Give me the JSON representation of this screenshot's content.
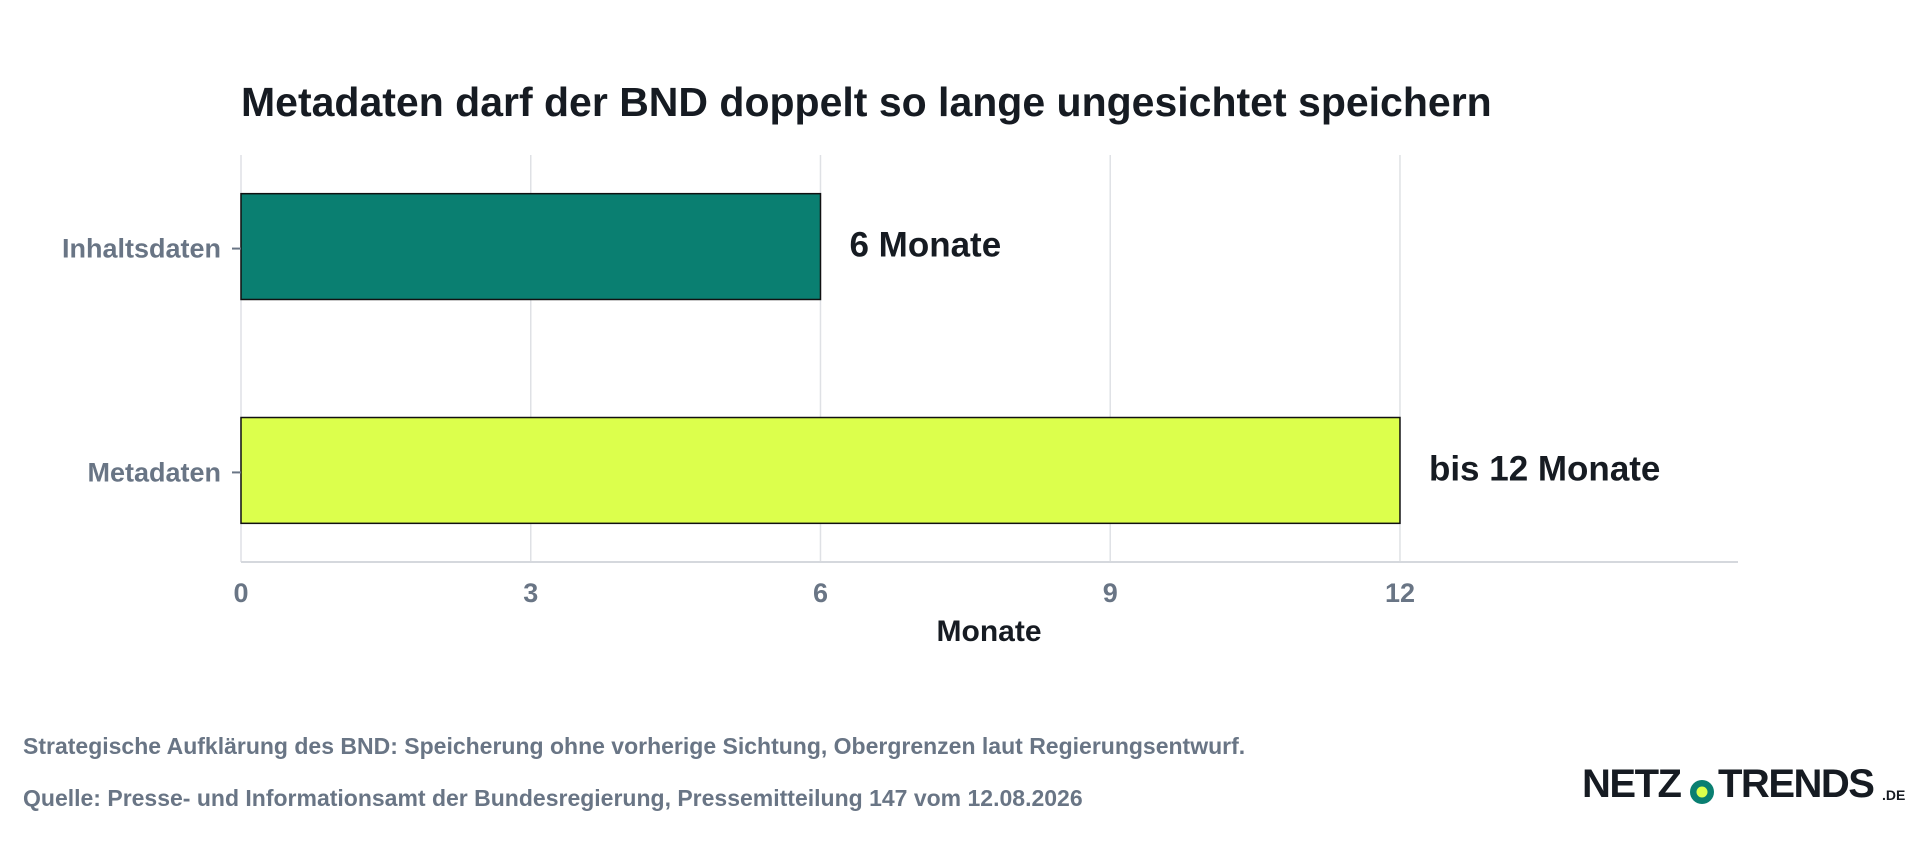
{
  "chart_data": {
    "type": "bar",
    "orientation": "horizontal",
    "title": "Metadaten darf der BND doppelt so lange ungesichtet speichern",
    "categories": [
      "Inhaltsdaten",
      "Metadaten"
    ],
    "values": [
      6,
      12
    ],
    "data_labels": [
      "6 Monate",
      "bis 12 Monate"
    ],
    "colors": [
      "#0a7f71",
      "#dcff4c"
    ],
    "bar_outline": "#111111",
    "xlabel": "Monate",
    "ylabel": "",
    "xlim": [
      0,
      15.5
    ],
    "xticks": [
      0,
      3,
      6,
      9,
      12
    ],
    "grid": true,
    "legend": "none"
  },
  "footer": {
    "note": "Strategische Aufklärung des BND: Speicherung ohne vorherige Sichtung, Obergrenzen laut Regierungsentwurf.",
    "source": "Quelle: Presse- und Informationsamt der Bundesregierung, Pressemitteilung 147 vom 12.08.2026"
  },
  "logo": {
    "name": "netzo-trends-logo",
    "text_left": "NETZ",
    "text_right": "TRENDS",
    "suffix": ".DE",
    "dot_ring_color": "#0a7f71",
    "dot_color": "#dcff4c"
  }
}
